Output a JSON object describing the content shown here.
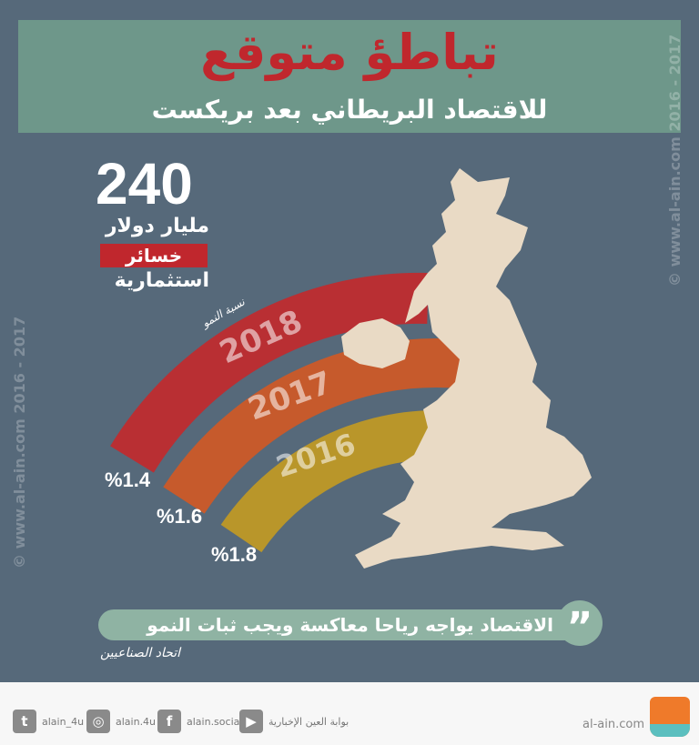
{
  "header": {
    "title": "تباطؤ متوقع",
    "subtitle": "للاقتصاد البريطاني بعد بريكست"
  },
  "stat": {
    "value": "240",
    "unit": "مليار دولار",
    "tag": "خسائر",
    "desc": "استثمارية"
  },
  "arcs": {
    "label": "نسبة النمو",
    "items": [
      {
        "year": "2018",
        "growth": "%1.4",
        "color": "#b92f33"
      },
      {
        "year": "2017",
        "growth": "%1.6",
        "color": "#c65a2c"
      },
      {
        "year": "2016",
        "growth": "%1.8",
        "color": "#b9962a"
      }
    ]
  },
  "quote": {
    "text": "الاقتصاد يواجه رياحا معاكسة ويجب ثبات النمو",
    "source": "اتحاد الصناعيين",
    "icon": "quote-icon"
  },
  "watermark": {
    "site": "www.al-ain.com",
    "years": "2016 - 2017",
    "copyright": "©"
  },
  "footer": {
    "social": [
      {
        "icon": "twitter-icon",
        "glyph": "t",
        "label": "alain_4u"
      },
      {
        "icon": "instagram-icon",
        "glyph": "◎",
        "label": "alain.4u"
      },
      {
        "icon": "facebook-icon",
        "glyph": "f",
        "label": "alain.social"
      },
      {
        "icon": "youtube-icon",
        "glyph": "▶",
        "label": "بوابة العين الإخبارية"
      }
    ],
    "site": "al-ain.com"
  },
  "colors": {
    "background": "#56697a",
    "band": "#6e978a",
    "accent": "#c0272d",
    "map": "#e9dac5"
  }
}
